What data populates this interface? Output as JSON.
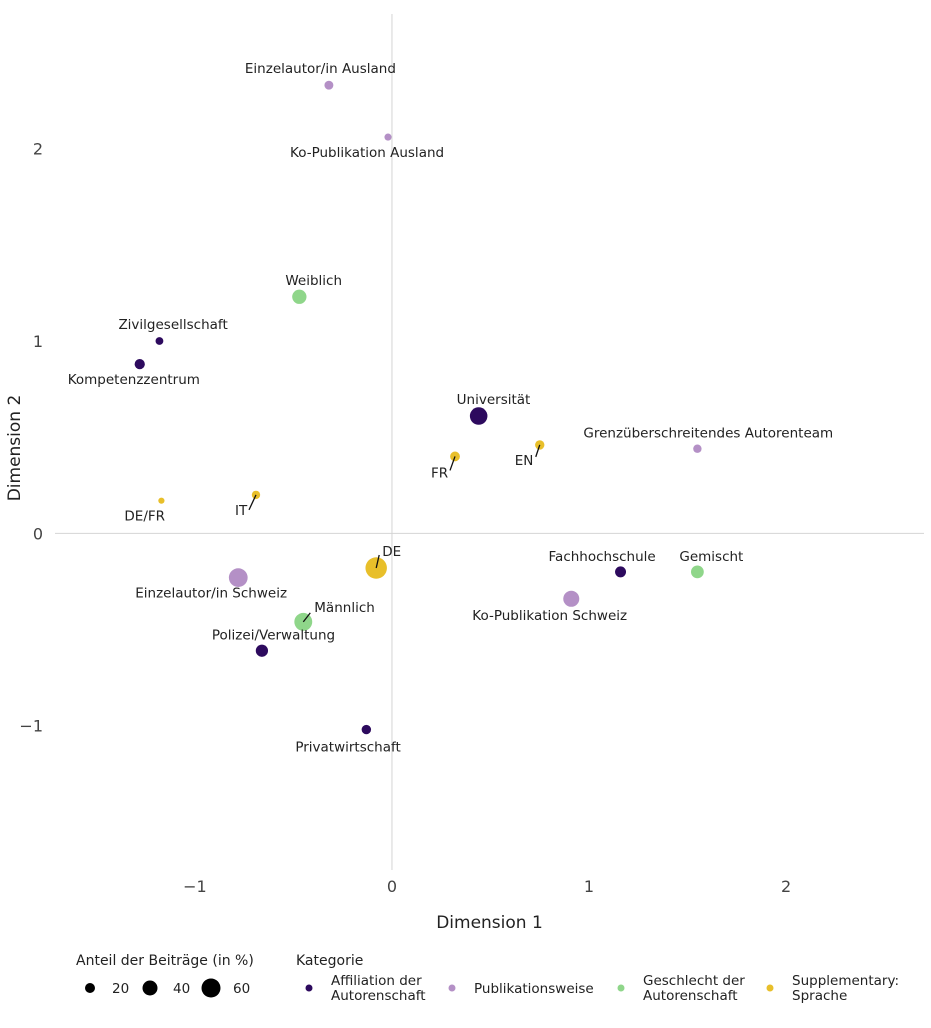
{
  "chart_data": {
    "type": "scatter",
    "xlabel": "Dimension 1",
    "ylabel": "Dimension 2",
    "xlim": [
      -1.71,
      2.7
    ],
    "ylim": [
      -1.75,
      2.7
    ],
    "x_ticks": [
      -1,
      0,
      1,
      2
    ],
    "y_ticks": [
      -1,
      0,
      1,
      2
    ],
    "x_tick_labels": [
      "−1",
      "0",
      "1",
      "2"
    ],
    "y_tick_labels": [
      "−1",
      "0",
      "1",
      "2"
    ],
    "grid": "zero-lines-only",
    "legend_position": "bottom",
    "size_legend": {
      "title": "Anteil der Beiträge (in %)",
      "items": [
        {
          "label": "20",
          "value": 20
        },
        {
          "label": "40",
          "value": 40
        },
        {
          "label": "60",
          "value": 60
        }
      ]
    },
    "color_legend": {
      "title": "Kategorie",
      "items": [
        {
          "key": "affil",
          "lines": [
            "Affiliation der",
            "Autorenschaft"
          ],
          "color": "#2D0A5E"
        },
        {
          "key": "pub",
          "lines": [
            "Publikationsweise"
          ],
          "color": "#B490C6"
        },
        {
          "key": "gender",
          "lines": [
            "Geschlecht der",
            "Autorenschaft"
          ],
          "color": "#8FD68A"
        },
        {
          "key": "lang",
          "lines": [
            "Supplementary:",
            "Sprache"
          ],
          "color": "#E8BF2A"
        }
      ]
    },
    "points": [
      {
        "label": "Einzelautor/in Ausland",
        "x": -0.32,
        "y": 2.33,
        "size": 5,
        "category": "pub"
      },
      {
        "label": "Ko-Publikation Ausland",
        "x": -0.02,
        "y": 2.06,
        "size": 2,
        "category": "pub"
      },
      {
        "label": "Weiblich",
        "x": -0.47,
        "y": 1.23,
        "size": 22,
        "category": "gender"
      },
      {
        "label": "Zivilgesellschaft",
        "x": -1.18,
        "y": 1.0,
        "size": 3,
        "category": "affil"
      },
      {
        "label": "Kompetenzzentrum",
        "x": -1.28,
        "y": 0.88,
        "size": 8,
        "category": "affil"
      },
      {
        "label": "Universität",
        "x": 0.44,
        "y": 0.61,
        "size": 38,
        "category": "affil"
      },
      {
        "label": "Grenzüberschreitendes Autorenteam",
        "x": 1.55,
        "y": 0.44,
        "size": 4,
        "category": "pub"
      },
      {
        "label": "EN",
        "x": 0.75,
        "y": 0.46,
        "size": 6,
        "category": "lang"
      },
      {
        "label": "FR",
        "x": 0.32,
        "y": 0.4,
        "size": 7,
        "category": "lang"
      },
      {
        "label": "IT",
        "x": -0.69,
        "y": 0.2,
        "size": 4,
        "category": "lang"
      },
      {
        "label": "DE/FR",
        "x": -1.17,
        "y": 0.17,
        "size": 1,
        "category": "lang"
      },
      {
        "label": "DE",
        "x": -0.08,
        "y": -0.18,
        "size": 63,
        "category": "lang"
      },
      {
        "label": "Einzelautor/in Schweiz",
        "x": -0.78,
        "y": -0.23,
        "size": 45,
        "category": "pub"
      },
      {
        "label": "Fachhochschule",
        "x": 1.16,
        "y": -0.2,
        "size": 10,
        "category": "affil"
      },
      {
        "label": "Gemischt",
        "x": 1.55,
        "y": -0.2,
        "size": 16,
        "category": "gender"
      },
      {
        "label": "Ko-Publikation Schweiz",
        "x": 0.91,
        "y": -0.34,
        "size": 30,
        "category": "pub"
      },
      {
        "label": "Männlich",
        "x": -0.45,
        "y": -0.46,
        "size": 40,
        "category": "gender"
      },
      {
        "label": "Polizei/Verwaltung",
        "x": -0.66,
        "y": -0.61,
        "size": 14,
        "category": "affil"
      },
      {
        "label": "Privatwirtschaft",
        "x": -0.13,
        "y": -1.02,
        "size": 6,
        "category": "affil"
      }
    ]
  }
}
